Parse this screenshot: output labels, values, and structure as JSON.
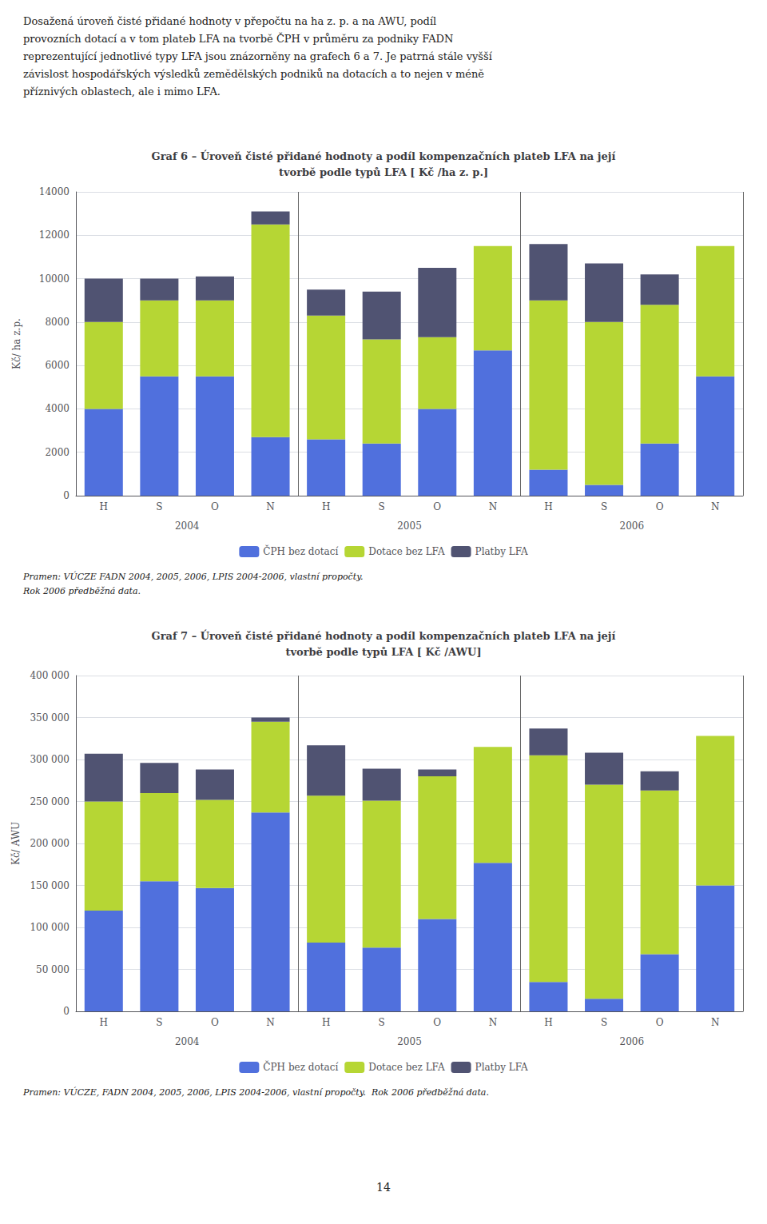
{
  "intro_text": "Dosažená úroveň čisté přidané hodnoty v přepočtu na ha z. p. a na AWU, podíl\nprovozních dotací a v tom plateb LFA na tvorbě ČPH v průměru za podniky FADN\nreprezentující jednotlivé typy LFA jsou znázorněny na grafech 6 a 7. Je patrná stále vyšší\nzávislost hospodářských výsledků zemědělských podniků na dotacích a to nejen v méně\npříznivých oblastech, ale i mimo LFA.",
  "page_number": "14",
  "chart_data": [
    {
      "type": "bar",
      "title": "Graf 6 – Úroveň čisté přidané hodnoty a podíl kompenzačních plateb LFA na její\ntvorbě podle typů LFA [ Kč /ha z. p.]",
      "categories": [
        "H",
        "S",
        "O",
        "N",
        "H",
        "S",
        "O",
        "N",
        "H",
        "S",
        "O",
        "N"
      ],
      "group_labels": [
        "2004",
        "2005",
        "2006"
      ],
      "ylabel": "Kč/ ha z.p.",
      "series": [
        {
          "name": "ČPH bez dotací",
          "values": [
            4000,
            5500,
            5500,
            2700,
            2600,
            2400,
            4000,
            6700,
            1200,
            500,
            2400,
            5500
          ]
        },
        {
          "name": "Dotace bez LFA",
          "values": [
            4000,
            3500,
            3500,
            9800,
            5700,
            4800,
            3300,
            4800,
            7800,
            7500,
            6400,
            6000
          ]
        },
        {
          "name": "Platby LFA",
          "values": [
            2000,
            1000,
            1100,
            600,
            1200,
            2200,
            3200,
            0,
            2600,
            2700,
            1400,
            0
          ]
        }
      ],
      "stacked": true,
      "ylim": [
        0,
        14000
      ],
      "yticks": [
        0,
        2000,
        4000,
        6000,
        8000,
        10000,
        12000,
        14000
      ],
      "grid": true,
      "legend": "bottom",
      "annotations": [
        "Pramen: VÚCZE FADN 2004, 2005, 2006, LPIS 2004-2006, vlastní propočty.",
        "Rok 2006 předběžná data."
      ]
    },
    {
      "type": "bar",
      "title": "Graf 7 – Úroveň čisté přidané hodnoty a podíl kompenzačních plateb LFA na její\ntvorbě podle typů LFA [ Kč /AWU]",
      "categories": [
        "H",
        "S",
        "O",
        "N",
        "H",
        "S",
        "O",
        "N",
        "H",
        "S",
        "O",
        "N"
      ],
      "group_labels": [
        "2004",
        "2005",
        "2006"
      ],
      "ylabel": "Kč/ AWU",
      "series": [
        {
          "name": "ČPH bez dotací",
          "values": [
            120000,
            155000,
            147000,
            237000,
            82000,
            76000,
            110000,
            177000,
            35000,
            15000,
            68000,
            150000
          ]
        },
        {
          "name": "Dotace bez LFA",
          "values": [
            130000,
            105000,
            105000,
            108000,
            175000,
            175000,
            170000,
            138000,
            270000,
            255000,
            195000,
            178000
          ]
        },
        {
          "name": "Platby LFA",
          "values": [
            57000,
            36000,
            36000,
            5000,
            60000,
            38000,
            8000,
            0,
            32000,
            38000,
            23000,
            0
          ]
        }
      ],
      "stacked": true,
      "ylim": [
        0,
        400000
      ],
      "yticks": [
        0,
        {
          "value": 50000,
          "label": "50 000"
        },
        {
          "value": 100000,
          "label": "100 000"
        },
        {
          "value": 150000,
          "label": "150 000"
        },
        {
          "value": 200000,
          "label": "200 000"
        },
        {
          "value": 250000,
          "label": "250 000"
        },
        {
          "value": 300000,
          "label": "300 000"
        },
        {
          "value": 350000,
          "label": "350 000"
        },
        {
          "value": 400000,
          "label": "400 000"
        }
      ],
      "grid": true,
      "legend": "bottom",
      "annotations": [
        "Pramen: VÚCZE, FADN 2004, 2005, 2006, LPIS 2004-2006, vlastní propočty.  Rok 2006 předběžná data."
      ]
    }
  ]
}
